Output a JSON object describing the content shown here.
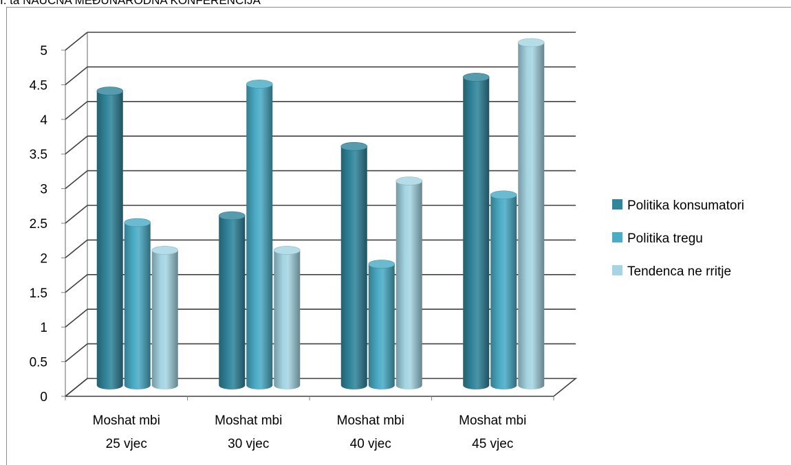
{
  "page": {
    "header_text": "I. ta NAUČNA MEĐUNARODNA KONFERENCIJA"
  },
  "chart_data": {
    "type": "bar",
    "title": "",
    "xlabel": "",
    "ylabel": "",
    "ylim": [
      0,
      5
    ],
    "yticks": [
      "0",
      "0.5",
      "1",
      "1.5",
      "2",
      "2.5",
      "3",
      "3.5",
      "4",
      "4.5",
      "5"
    ],
    "yticks_values": [
      0,
      0.5,
      1,
      1.5,
      2,
      2.5,
      3,
      3.5,
      4,
      4.5,
      5
    ],
    "grid": true,
    "style": "3d-cylinder",
    "categories": [
      [
        "Moshat mbi",
        "25 vjec"
      ],
      [
        "Moshat mbi",
        "30 vjec"
      ],
      [
        "Moshat mbi",
        "40 vjec"
      ],
      [
        "Moshat mbi",
        "45 vjec"
      ]
    ],
    "series": [
      {
        "name": "Politika konsumatori",
        "color": "#31859c",
        "values": [
          4.3,
          2.5,
          3.5,
          4.5
        ]
      },
      {
        "name": "Politika tregu",
        "color": "#4bacc6",
        "values": [
          2.4,
          4.4,
          1.8,
          2.8
        ]
      },
      {
        "name": "Tendenca ne rritje",
        "color": "#a5d5e3",
        "values": [
          2.0,
          2.0,
          3.0,
          5.0
        ]
      }
    ],
    "legend": {
      "position": "right"
    }
  }
}
